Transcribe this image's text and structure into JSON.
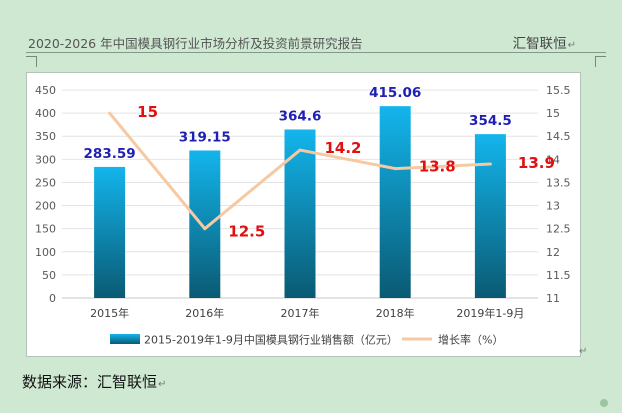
{
  "header": {
    "title": "2020-2026 年中国模具钢行业市场分析及投资前景研究报告",
    "brand": "汇智联恒",
    "brand_mark": "↵"
  },
  "footer": {
    "source": "数据来源：汇智联恒",
    "source_mark": "↵"
  },
  "chart_data": {
    "type": "bar",
    "categories": [
      "2015年",
      "2016年",
      "2017年",
      "2018年",
      "2019年1-9月"
    ],
    "series": [
      {
        "name": "2015-2019年1-9月中国模具钢行业销售额（亿元）",
        "type": "bar",
        "axis": "left",
        "values": [
          283.59,
          319.15,
          364.6,
          415.06,
          354.5
        ],
        "labels": [
          "283.59",
          "319.15",
          "364.6",
          "415.06",
          "354.5"
        ],
        "label_color": "#1f1fb4",
        "color_top": "#13b5ec",
        "color_bottom": "#0a5a73"
      },
      {
        "name": "增长率（%）",
        "type": "line",
        "axis": "right",
        "values": [
          15,
          12.5,
          14.2,
          13.8,
          13.9
        ],
        "labels": [
          "15",
          "12.5",
          "14.2",
          "13.8",
          "13.9"
        ],
        "label_color": "#e01010",
        "color": "#f6c9a2"
      }
    ],
    "y_left": {
      "min": 0,
      "max": 450,
      "step": 50,
      "ticks": [
        "0",
        "50",
        "100",
        "150",
        "200",
        "250",
        "300",
        "350",
        "400",
        "450"
      ]
    },
    "y_right": {
      "min": 11,
      "max": 15.5,
      "step": 0.5,
      "ticks": [
        "11",
        "11.5",
        "12",
        "12.5",
        "13",
        "13.5",
        "14",
        "14.5",
        "15",
        "15.5"
      ]
    },
    "grid": true,
    "legend_position": "bottom",
    "title": ""
  }
}
